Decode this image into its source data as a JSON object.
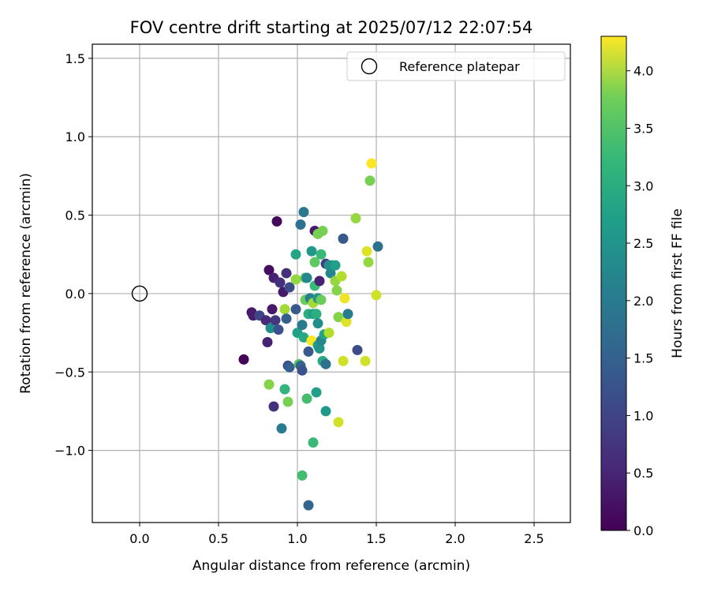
{
  "chart_data": {
    "type": "scatter",
    "title": "FOV centre drift starting at 2025/07/12 22:07:54",
    "xlabel": "Angular distance from reference (arcmin)",
    "ylabel": "Rotation from reference (arcmin)",
    "xlim": [
      -0.3,
      2.73
    ],
    "ylim": [
      -1.46,
      1.59
    ],
    "x_ticks": [
      "0.0",
      "0.5",
      "1.0",
      "1.5",
      "2.0",
      "2.5"
    ],
    "x_tick_values": [
      0.0,
      0.5,
      1.0,
      1.5,
      2.0,
      2.5
    ],
    "y_ticks": [
      "−1.0",
      "−0.5",
      "0.0",
      "0.5",
      "1.0",
      "1.5"
    ],
    "y_tick_values": [
      -1.0,
      -0.5,
      0.0,
      0.5,
      1.0,
      1.5
    ],
    "grid": true,
    "legend": {
      "placement": "upper-right",
      "entries": [
        {
          "label": "Reference platepar",
          "marker": "open-circle",
          "x": 0.0,
          "y": 0.0
        }
      ]
    },
    "colorbar": {
      "label": "Hours from first FF file",
      "colormap": "viridis",
      "range": [
        0.0,
        4.3
      ],
      "ticks": [
        "0.0",
        "0.5",
        "1.0",
        "1.5",
        "2.0",
        "2.5",
        "3.0",
        "3.5",
        "4.0"
      ],
      "tick_values": [
        0.0,
        0.5,
        1.0,
        1.5,
        2.0,
        2.5,
        3.0,
        3.5,
        4.0
      ]
    },
    "points": [
      {
        "x": 0.66,
        "y": -0.42,
        "c": 0.05
      },
      {
        "x": 0.71,
        "y": -0.12,
        "c": 0.3
      },
      {
        "x": 0.72,
        "y": -0.14,
        "c": 0.35
      },
      {
        "x": 0.76,
        "y": -0.14,
        "c": 0.9
      },
      {
        "x": 0.8,
        "y": -0.17,
        "c": 0.5
      },
      {
        "x": 0.81,
        "y": -0.31,
        "c": 0.4
      },
      {
        "x": 0.82,
        "y": 0.15,
        "c": 0.15
      },
      {
        "x": 0.83,
        "y": -0.22,
        "c": 2.1
      },
      {
        "x": 0.84,
        "y": -0.1,
        "c": 0.3
      },
      {
        "x": 0.85,
        "y": 0.1,
        "c": 0.4
      },
      {
        "x": 0.85,
        "y": -0.72,
        "c": 0.6
      },
      {
        "x": 0.86,
        "y": -0.17,
        "c": 0.7
      },
      {
        "x": 0.87,
        "y": 0.46,
        "c": 0.1
      },
      {
        "x": 0.88,
        "y": -0.23,
        "c": 1.1
      },
      {
        "x": 0.89,
        "y": 0.07,
        "c": 0.6
      },
      {
        "x": 0.9,
        "y": -0.86,
        "c": 1.8
      },
      {
        "x": 0.91,
        "y": 0.01,
        "c": 0.3
      },
      {
        "x": 0.92,
        "y": -0.1,
        "c": 3.7
      },
      {
        "x": 0.92,
        "y": -0.61,
        "c": 2.8
      },
      {
        "x": 0.93,
        "y": 0.13,
        "c": 0.6
      },
      {
        "x": 0.93,
        "y": -0.16,
        "c": 1.3
      },
      {
        "x": 0.94,
        "y": -0.46,
        "c": 1.0
      },
      {
        "x": 0.94,
        "y": -0.69,
        "c": 3.4
      },
      {
        "x": 0.95,
        "y": 0.04,
        "c": 1.0
      },
      {
        "x": 0.95,
        "y": -0.47,
        "c": 1.3
      },
      {
        "x": 0.82,
        "y": -0.58,
        "c": 3.5
      },
      {
        "x": 0.99,
        "y": 0.09,
        "c": 3.6
      },
      {
        "x": 0.99,
        "y": 0.25,
        "c": 2.5
      },
      {
        "x": 0.99,
        "y": -0.1,
        "c": 1.2
      },
      {
        "x": 1.0,
        "y": -0.25,
        "c": 2.4
      },
      {
        "x": 1.01,
        "y": -0.45,
        "c": 3.2
      },
      {
        "x": 1.02,
        "y": 0.44,
        "c": 1.6
      },
      {
        "x": 1.02,
        "y": -0.46,
        "c": 1.4
      },
      {
        "x": 1.03,
        "y": -0.2,
        "c": 1.8
      },
      {
        "x": 1.03,
        "y": -0.49,
        "c": 1.1
      },
      {
        "x": 1.03,
        "y": -1.16,
        "c": 3.0
      },
      {
        "x": 1.04,
        "y": 0.52,
        "c": 1.7
      },
      {
        "x": 1.04,
        "y": -0.28,
        "c": 2.6
      },
      {
        "x": 1.05,
        "y": 0.1,
        "c": 3.1
      },
      {
        "x": 1.05,
        "y": -0.04,
        "c": 3.3
      },
      {
        "x": 1.06,
        "y": 0.1,
        "c": 2.0
      },
      {
        "x": 1.06,
        "y": -0.67,
        "c": 3.0
      },
      {
        "x": 1.07,
        "y": -0.13,
        "c": 2.7
      },
      {
        "x": 1.07,
        "y": -0.37,
        "c": 1.2
      },
      {
        "x": 1.07,
        "y": -1.35,
        "c": 1.4
      },
      {
        "x": 1.08,
        "y": -0.03,
        "c": 1.9
      },
      {
        "x": 1.09,
        "y": 0.27,
        "c": 2.3
      },
      {
        "x": 1.09,
        "y": -0.3,
        "c": 4.3
      },
      {
        "x": 1.1,
        "y": -0.06,
        "c": 3.7
      },
      {
        "x": 1.1,
        "y": -0.13,
        "c": 2.4
      },
      {
        "x": 1.1,
        "y": -0.95,
        "c": 2.9
      },
      {
        "x": 1.11,
        "y": 0.4,
        "c": 0.3
      },
      {
        "x": 1.11,
        "y": 0.2,
        "c": 3.2
      },
      {
        "x": 1.11,
        "y": 0.05,
        "c": 2.9
      },
      {
        "x": 1.12,
        "y": -0.13,
        "c": 2.7
      },
      {
        "x": 1.12,
        "y": -0.63,
        "c": 2.4
      },
      {
        "x": 1.13,
        "y": 0.38,
        "c": 3.4
      },
      {
        "x": 1.13,
        "y": -0.03,
        "c": 2.2
      },
      {
        "x": 1.13,
        "y": -0.19,
        "c": 2.1
      },
      {
        "x": 1.13,
        "y": -0.33,
        "c": 2.4
      },
      {
        "x": 1.14,
        "y": 0.08,
        "c": 0.4
      },
      {
        "x": 1.14,
        "y": -0.35,
        "c": 2.2
      },
      {
        "x": 1.15,
        "y": 0.25,
        "c": 2.9
      },
      {
        "x": 1.15,
        "y": -0.04,
        "c": 3.3
      },
      {
        "x": 1.15,
        "y": -0.3,
        "c": 2.0
      },
      {
        "x": 1.16,
        "y": 0.4,
        "c": 3.4
      },
      {
        "x": 1.16,
        "y": -0.43,
        "c": 2.6
      },
      {
        "x": 1.17,
        "y": -0.26,
        "c": 2.5
      },
      {
        "x": 1.18,
        "y": 0.19,
        "c": 0.8
      },
      {
        "x": 1.18,
        "y": -0.45,
        "c": 1.6
      },
      {
        "x": 1.18,
        "y": -0.75,
        "c": 2.3
      },
      {
        "x": 1.2,
        "y": 0.18,
        "c": 2.2
      },
      {
        "x": 1.2,
        "y": -0.25,
        "c": 3.8
      },
      {
        "x": 1.21,
        "y": 0.13,
        "c": 2.0
      },
      {
        "x": 1.22,
        "y": 0.18,
        "c": 2.1
      },
      {
        "x": 1.24,
        "y": 0.18,
        "c": 2.4
      },
      {
        "x": 1.24,
        "y": 0.08,
        "c": 3.6
      },
      {
        "x": 1.25,
        "y": 0.02,
        "c": 3.5
      },
      {
        "x": 1.26,
        "y": -0.15,
        "c": 3.5
      },
      {
        "x": 1.26,
        "y": -0.82,
        "c": 4.0
      },
      {
        "x": 1.28,
        "y": 0.11,
        "c": 3.8
      },
      {
        "x": 1.29,
        "y": 0.35,
        "c": 1.2
      },
      {
        "x": 1.29,
        "y": -0.43,
        "c": 4.0
      },
      {
        "x": 1.3,
        "y": -0.03,
        "c": 4.2
      },
      {
        "x": 1.31,
        "y": -0.18,
        "c": 4.1
      },
      {
        "x": 1.32,
        "y": -0.13,
        "c": 1.8
      },
      {
        "x": 1.37,
        "y": 0.48,
        "c": 3.6
      },
      {
        "x": 1.38,
        "y": -0.36,
        "c": 1.0
      },
      {
        "x": 1.43,
        "y": -0.43,
        "c": 4.0
      },
      {
        "x": 1.44,
        "y": 0.27,
        "c": 4.1
      },
      {
        "x": 1.45,
        "y": 0.2,
        "c": 3.6
      },
      {
        "x": 1.46,
        "y": 0.72,
        "c": 3.4
      },
      {
        "x": 1.47,
        "y": 0.83,
        "c": 4.3
      },
      {
        "x": 1.5,
        "y": -0.01,
        "c": 4.0
      },
      {
        "x": 1.51,
        "y": 0.3,
        "c": 1.6
      }
    ]
  }
}
